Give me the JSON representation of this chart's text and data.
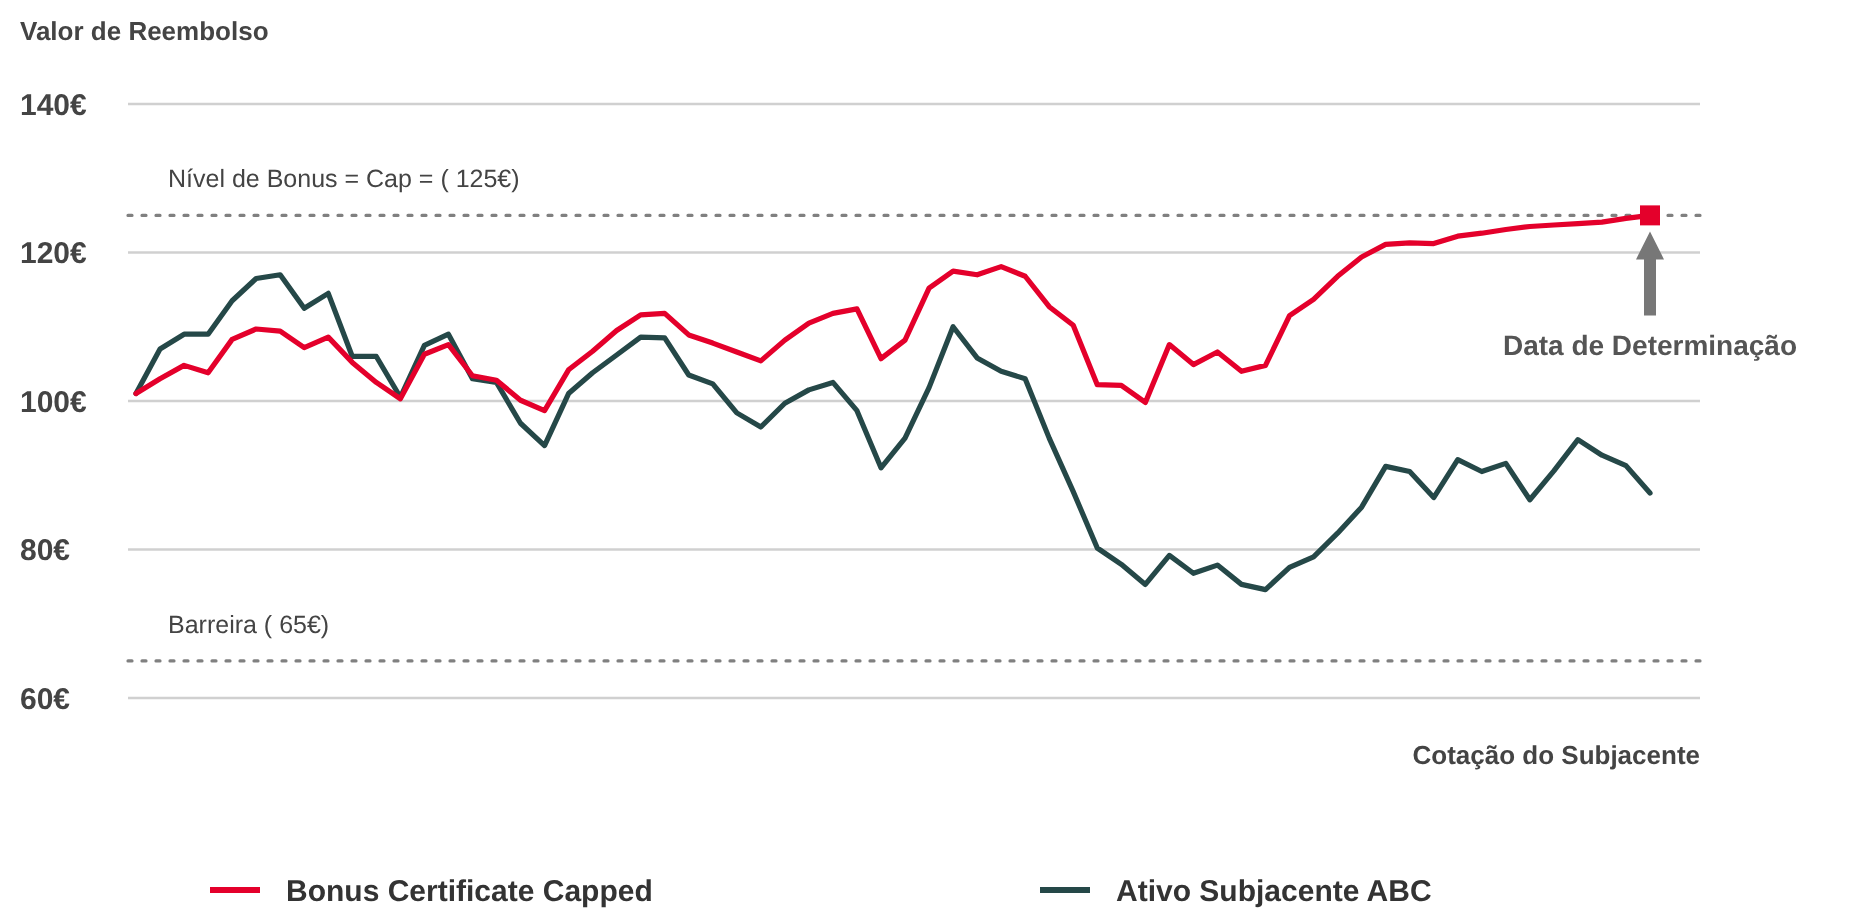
{
  "chart_data": {
    "type": "line",
    "ylabel": "Valor de Reembolso",
    "xlabel": "Cotação do Subjacente",
    "categories": [
      null,
      null,
      null,
      null,
      null,
      null,
      null,
      null,
      null,
      null,
      null,
      null,
      null,
      null,
      null,
      null,
      null,
      null,
      null,
      null,
      null,
      null,
      null,
      null,
      null,
      null,
      null,
      null,
      null,
      null,
      null,
      null,
      null,
      null,
      null,
      null,
      null,
      null,
      null,
      null,
      null,
      null,
      null,
      null,
      null,
      null,
      null,
      null,
      null,
      null,
      null,
      null,
      null,
      null,
      null,
      null,
      null,
      null,
      null,
      null,
      null,
      null,
      null,
      null
    ],
    "ylim": [
      60,
      140
    ],
    "yticks": [
      {
        "value": 60,
        "label": "60€"
      },
      {
        "value": 80,
        "label": "80€"
      },
      {
        "value": 100,
        "label": "100€"
      },
      {
        "value": 120,
        "label": "120€"
      },
      {
        "value": 140,
        "label": "140€"
      }
    ],
    "tick_labels": "y",
    "grid": "y",
    "legend": "bottom",
    "line_style": "solid",
    "marker": "none",
    "ref_lines": [
      {
        "axis": "y",
        "value": 125,
        "label": "Nível de Bonus = Cap = ( 125€)",
        "color": "#808080",
        "line_style": "dotted"
      },
      {
        "axis": "y",
        "value": 65,
        "label": "Barreira ( 65€)",
        "color": "#808080",
        "line_style": "dotted"
      }
    ],
    "annotations": [
      "Data de Determinação"
    ],
    "series": [
      {
        "name": "Bonus Certificate Capped",
        "color": "#e4002b",
        "values": [
          101,
          103,
          104.8,
          103.8,
          108.3,
          109.7,
          109.4,
          107.2,
          108.6,
          105.2,
          102.5,
          100.3,
          106.3,
          107.6,
          103.4,
          102.8,
          100.1,
          98.7,
          104.2,
          106.7,
          109.5,
          111.6,
          111.8,
          108.9,
          107.8,
          106.6,
          105.4,
          108.2,
          110.5,
          111.8,
          112.4,
          105.7,
          108.2,
          115.2,
          117.5,
          117,
          118.1,
          116.8,
          112.7,
          110.2,
          102.2,
          102.1,
          99.8,
          107.6,
          104.9,
          106.6,
          104,
          104.8,
          111.5,
          113.7,
          116.8,
          119.4,
          121.1,
          121.3,
          121.2,
          122.2,
          122.6,
          123.1,
          123.5,
          123.7,
          123.9,
          124.1,
          124.6,
          125
        ]
      },
      {
        "name": "Ativo Subjacente ABC",
        "color": "#254848",
        "values": [
          101,
          107,
          109,
          109,
          113.5,
          116.5,
          117,
          112.5,
          114.5,
          106,
          106,
          100.5,
          107.5,
          109,
          103,
          102.5,
          97,
          94,
          101,
          103.8,
          106.2,
          108.6,
          108.5,
          103.5,
          102.3,
          98.4,
          96.5,
          99.7,
          101.5,
          102.5,
          98.7,
          91,
          95,
          101.8,
          110,
          105.8,
          104,
          103,
          95,
          87.8,
          80.2,
          78,
          75.3,
          79.2,
          76.8,
          77.9,
          75.3,
          74.6,
          77.6,
          79,
          82.2,
          85.7,
          91.2,
          90.5,
          87,
          92.1,
          90.5,
          91.6,
          86.7,
          90.6,
          94.8,
          92.7,
          91.3,
          87.6
        ]
      }
    ]
  }
}
